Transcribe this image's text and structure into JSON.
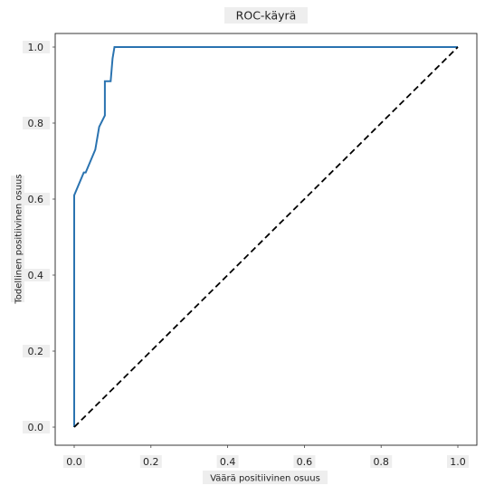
{
  "chart_data": {
    "type": "line",
    "title": "ROC-käyrä",
    "xlabel": "Väärä positiivinen osuus",
    "ylabel": "Todellinen positiivinen osuus",
    "xlim": [
      0,
      1
    ],
    "ylim": [
      0,
      1
    ],
    "xticks": [
      "0.0",
      "0.2",
      "0.4",
      "0.6",
      "0.8",
      "1.0"
    ],
    "yticks": [
      "0.0",
      "0.2",
      "0.4",
      "0.6",
      "0.8",
      "1.0"
    ],
    "grid": false,
    "series": [
      {
        "color": "#2a73b0",
        "style": "solid",
        "x": [
          0.0,
          0.0,
          0.0,
          0.025,
          0.03,
          0.055,
          0.065,
          0.075,
          0.08,
          0.08,
          0.09,
          0.095,
          0.1,
          0.105,
          1.0
        ],
        "y": [
          0.0,
          0.28,
          0.61,
          0.67,
          0.67,
          0.73,
          0.79,
          0.81,
          0.82,
          0.91,
          0.91,
          0.91,
          0.97,
          1.0,
          1.0
        ]
      },
      {
        "color": "#000000",
        "style": "dashed",
        "x": [
          0.0,
          1.0
        ],
        "y": [
          0.0,
          1.0
        ]
      }
    ]
  }
}
